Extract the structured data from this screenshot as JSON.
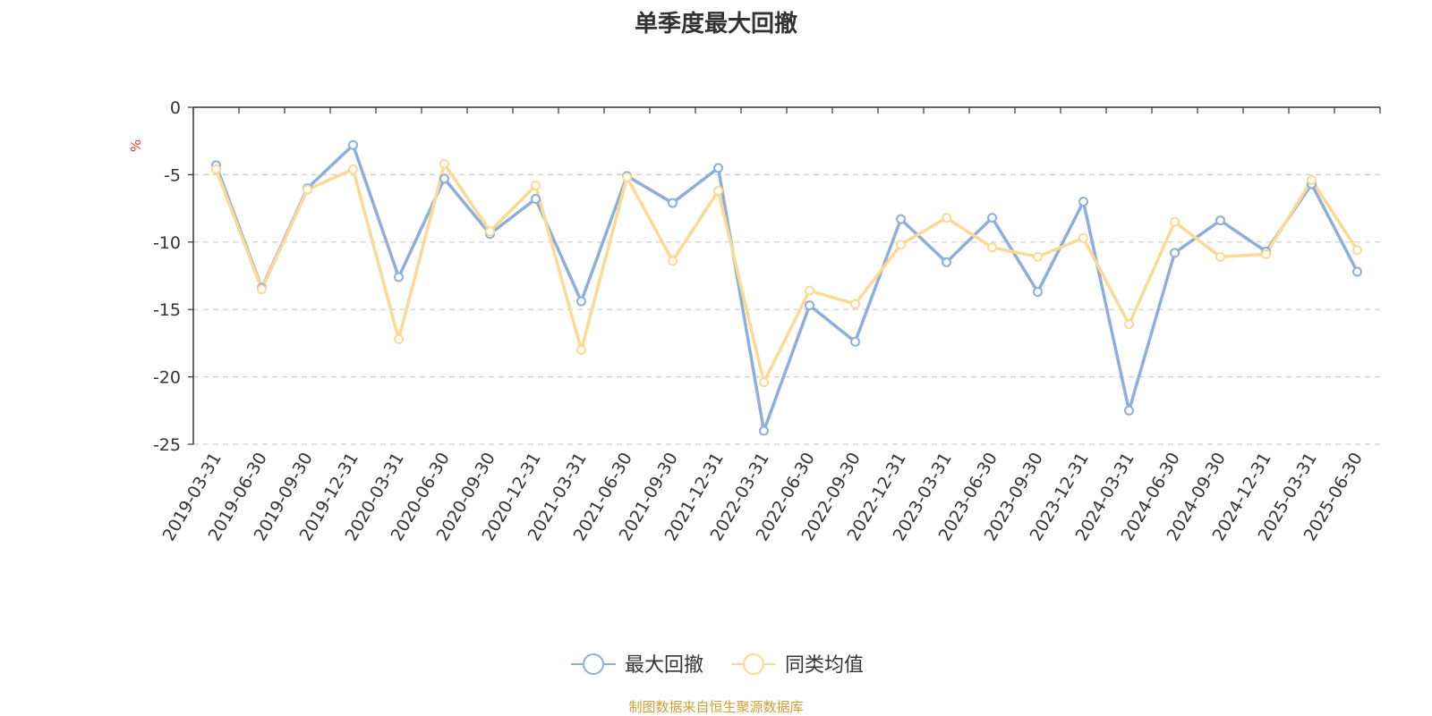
{
  "chart_data": {
    "type": "line",
    "title": "单季度最大回撤",
    "ylabel": "%",
    "xlabel": "",
    "ylim": [
      -25,
      0
    ],
    "yticks": [
      0,
      -5,
      -10,
      -15,
      -20,
      -25
    ],
    "grid": true,
    "legend_position": "bottom-center",
    "categories": [
      "2019-03-31",
      "2019-06-30",
      "2019-09-30",
      "2019-12-31",
      "2020-03-31",
      "2020-06-30",
      "2020-09-30",
      "2020-12-31",
      "2021-03-31",
      "2021-06-30",
      "2021-09-30",
      "2021-12-31",
      "2022-03-31",
      "2022-06-30",
      "2022-09-30",
      "2022-12-31",
      "2023-03-31",
      "2023-06-30",
      "2023-09-30",
      "2023-12-31",
      "2024-03-31",
      "2024-06-30",
      "2024-09-30",
      "2024-12-31",
      "2025-03-31",
      "2025-06-30"
    ],
    "series": [
      {
        "name": "最大回撤",
        "color": "#8eaedb",
        "values": [
          -4.3,
          -13.4,
          -6.0,
          -2.8,
          -12.6,
          -5.3,
          -9.4,
          -6.8,
          -14.4,
          -5.1,
          -7.1,
          -4.5,
          -24.0,
          -14.7,
          -17.4,
          -8.3,
          -11.5,
          -8.2,
          -13.7,
          -7.0,
          -22.5,
          -10.8,
          -8.4,
          -10.7,
          -5.7,
          -12.2
        ]
      },
      {
        "name": "同类均值",
        "color": "#fcd995",
        "values": [
          -4.6,
          -13.5,
          -6.1,
          -4.6,
          -17.2,
          -4.2,
          -9.2,
          -5.8,
          -18.0,
          -5.2,
          -11.4,
          -6.2,
          -20.4,
          -13.6,
          -14.6,
          -10.2,
          -8.2,
          -10.4,
          -11.1,
          -9.7,
          -16.1,
          -8.5,
          -11.1,
          -10.9,
          -5.4,
          -10.6
        ]
      }
    ]
  },
  "footer": "制图数据来自恒生聚源数据库"
}
